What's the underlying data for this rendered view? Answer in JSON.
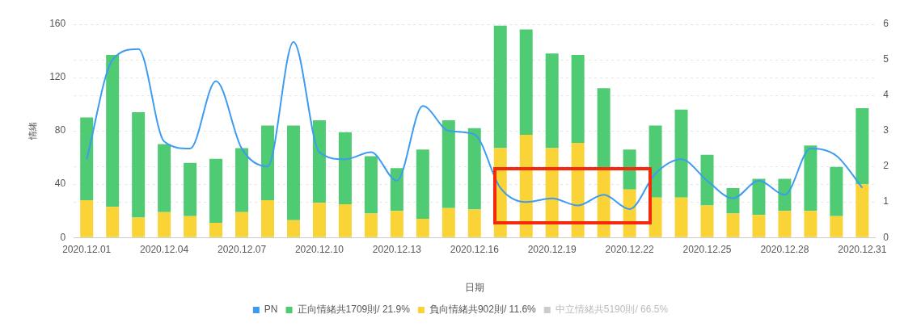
{
  "chart_data": {
    "type": "bar",
    "stacked": true,
    "xlabel": "日期",
    "ylabel": "情緒",
    "categories": [
      "2020.12.01",
      null,
      null,
      "2020.12.04",
      null,
      null,
      "2020.12.07",
      null,
      null,
      "2020.12.10",
      null,
      null,
      "2020.12.13",
      null,
      null,
      "2020.12.16",
      null,
      null,
      "2020.12.19",
      null,
      null,
      "2020.12.22",
      null,
      null,
      "2020.12.25",
      null,
      null,
      "2020.12.28",
      null,
      null,
      "2020.12.31"
    ],
    "series": [
      {
        "name": "PN",
        "type": "line",
        "axis": "y2",
        "color": "#3d9cf0",
        "values": [
          2.2,
          5.0,
          5.3,
          2.7,
          2.5,
          4.4,
          2.5,
          2.0,
          5.5,
          2.4,
          2.2,
          2.4,
          1.6,
          3.7,
          3.0,
          2.9,
          1.4,
          1.0,
          1.1,
          0.9,
          1.2,
          0.8,
          1.8,
          2.2,
          1.6,
          1.1,
          1.6,
          1.2,
          2.5,
          2.3,
          1.4
        ]
      },
      {
        "name": "負向情緒共902則/ 11.6%",
        "color": "#fad337",
        "values": [
          28,
          23,
          15,
          19,
          16,
          11,
          19,
          28,
          13,
          26,
          25,
          18,
          20,
          14,
          22,
          21,
          67,
          77,
          67,
          71,
          52,
          36,
          30,
          30,
          24,
          18,
          17,
          20,
          20,
          16,
          40
        ]
      },
      {
        "name": "正向情緒共1709則/ 21.9%",
        "color": "#4ecb73",
        "values": [
          62,
          114,
          79,
          51,
          40,
          48,
          48,
          56,
          71,
          62,
          54,
          43,
          32,
          52,
          66,
          61,
          92,
          79,
          71,
          66,
          60,
          30,
          54,
          66,
          38,
          19,
          27,
          24,
          49,
          37,
          57
        ]
      },
      {
        "name": "中立情緒共5190則/ 66.5%",
        "color": "#cccccc",
        "values": [
          null,
          null,
          null,
          null,
          null,
          null,
          null,
          null,
          null,
          null,
          null,
          null,
          null,
          null,
          null,
          null,
          null,
          null,
          null,
          null,
          null,
          null,
          null,
          null,
          null,
          null,
          null,
          null,
          null,
          null,
          null
        ]
      }
    ],
    "ylim": [
      0,
      160
    ],
    "yticks": [
      0,
      40,
      80,
      120,
      160
    ],
    "y2lim": [
      0,
      6
    ],
    "y2ticks": [
      0,
      1,
      2,
      3,
      4,
      5,
      6
    ],
    "grid": true,
    "legend": "bottom",
    "marker": "none",
    "line_style": "solid"
  }
}
